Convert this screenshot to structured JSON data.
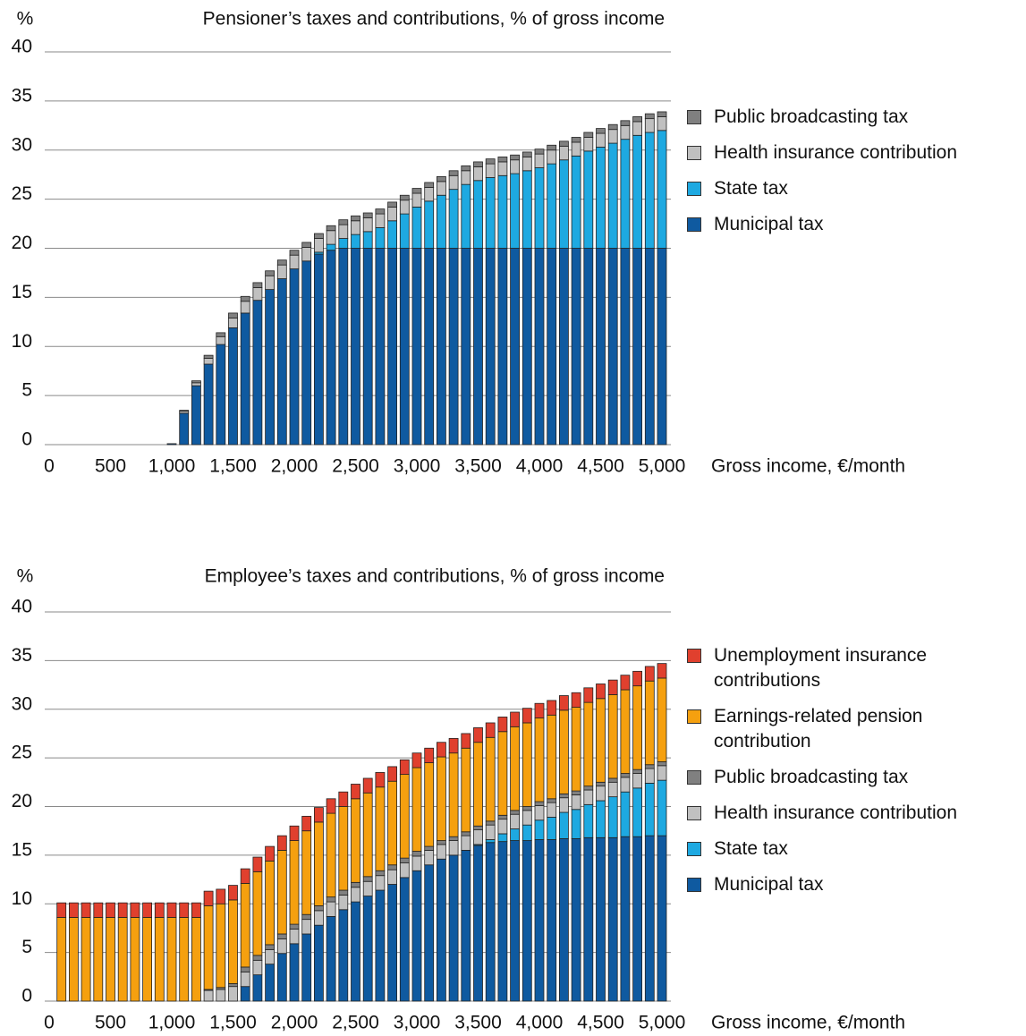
{
  "chart_data": [
    {
      "type": "bar",
      "stacked": true,
      "title": "Pensioner’s taxes and contributions, % of gross income",
      "y_label": "%",
      "x_label": "Gross income, €/month",
      "x": [
        100,
        200,
        300,
        400,
        500,
        600,
        700,
        800,
        900,
        1000,
        1100,
        1200,
        1300,
        1400,
        1500,
        1600,
        1700,
        1800,
        1900,
        2000,
        2100,
        2200,
        2300,
        2400,
        2500,
        2600,
        2700,
        2800,
        2900,
        3000,
        3100,
        3200,
        3300,
        3400,
        3500,
        3600,
        3700,
        3800,
        3900,
        4000,
        4100,
        4200,
        4300,
        4400,
        4500,
        4600,
        4700,
        4800,
        4900,
        5000
      ],
      "xlim": [
        0,
        5000
      ],
      "xticks": [
        0,
        500,
        {
          "value": 1000,
          "label": "1,000"
        },
        {
          "value": 1500,
          "label": "1,500"
        },
        {
          "value": 2000,
          "label": "2,000"
        },
        {
          "value": 2500,
          "label": "2,500"
        },
        {
          "value": 3000,
          "label": "3,000"
        },
        {
          "value": 3500,
          "label": "3,500"
        },
        {
          "value": 4000,
          "label": "4,000"
        },
        {
          "value": 4500,
          "label": "4,500"
        },
        {
          "value": 5000,
          "label": "5,000"
        }
      ],
      "ylim": [
        0,
        40
      ],
      "yticks": [
        0,
        5,
        10,
        15,
        20,
        25,
        30,
        35,
        40
      ],
      "grid": true,
      "series": [
        {
          "name": "Municipal tax",
          "color": "#0f5aa0",
          "values": [
            0,
            0,
            0,
            0,
            0,
            0,
            0,
            0,
            0,
            0.1,
            3.2,
            6.0,
            8.2,
            10.2,
            11.9,
            13.4,
            14.7,
            15.8,
            16.9,
            17.9,
            18.7,
            19.4,
            19.8,
            20,
            20,
            20,
            20,
            20,
            20,
            20,
            20,
            20,
            20,
            20,
            20,
            20,
            20,
            20,
            20,
            20,
            20,
            20,
            20,
            20,
            20,
            20,
            20,
            20,
            20,
            20
          ]
        },
        {
          "name": "State tax",
          "color": "#1ea9e1",
          "values": [
            0,
            0,
            0,
            0,
            0,
            0,
            0,
            0,
            0,
            0,
            0,
            0,
            0,
            0,
            0,
            0,
            0,
            0,
            0,
            0,
            0,
            0.2,
            0.6,
            1.0,
            1.4,
            1.7,
            2.1,
            2.8,
            3.5,
            4.2,
            4.8,
            5.4,
            6.0,
            6.5,
            6.9,
            7.2,
            7.4,
            7.6,
            7.9,
            8.2,
            8.6,
            9.0,
            9.4,
            9.9,
            10.3,
            10.7,
            11.1,
            11.5,
            11.8,
            12.0
          ]
        },
        {
          "name": "Health insurance contribution",
          "color": "#c0c0c0",
          "values": [
            0,
            0,
            0,
            0,
            0,
            0,
            0,
            0,
            0,
            0,
            0.2,
            0.3,
            0.6,
            0.8,
            1.0,
            1.2,
            1.3,
            1.4,
            1.4,
            1.4,
            1.4,
            1.4,
            1.4,
            1.4,
            1.4,
            1.4,
            1.4,
            1.4,
            1.4,
            1.4,
            1.4,
            1.4,
            1.4,
            1.4,
            1.4,
            1.4,
            1.4,
            1.4,
            1.4,
            1.4,
            1.4,
            1.4,
            1.4,
            1.4,
            1.4,
            1.4,
            1.4,
            1.4,
            1.4,
            1.4
          ]
        },
        {
          "name": "Public broadcasting tax",
          "color": "#808080",
          "values": [
            0,
            0,
            0,
            0,
            0,
            0,
            0,
            0,
            0,
            0,
            0.1,
            0.2,
            0.3,
            0.4,
            0.5,
            0.5,
            0.5,
            0.5,
            0.5,
            0.5,
            0.5,
            0.5,
            0.5,
            0.5,
            0.5,
            0.5,
            0.5,
            0.5,
            0.5,
            0.5,
            0.5,
            0.5,
            0.5,
            0.5,
            0.5,
            0.5,
            0.5,
            0.5,
            0.5,
            0.5,
            0.5,
            0.5,
            0.5,
            0.5,
            0.5,
            0.5,
            0.5,
            0.5,
            0.5,
            0.5
          ]
        }
      ]
    },
    {
      "type": "bar",
      "stacked": true,
      "title": "Employee’s taxes and contributions, % of gross income",
      "y_label": "%",
      "x_label": "Gross income, €/month",
      "x": [
        100,
        200,
        300,
        400,
        500,
        600,
        700,
        800,
        900,
        1000,
        1100,
        1200,
        1300,
        1400,
        1500,
        1600,
        1700,
        1800,
        1900,
        2000,
        2100,
        2200,
        2300,
        2400,
        2500,
        2600,
        2700,
        2800,
        2900,
        3000,
        3100,
        3200,
        3300,
        3400,
        3500,
        3600,
        3700,
        3800,
        3900,
        4000,
        4100,
        4200,
        4300,
        4400,
        4500,
        4600,
        4700,
        4800,
        4900,
        5000
      ],
      "xlim": [
        0,
        5000
      ],
      "xticks": [
        0,
        500,
        {
          "value": 1000,
          "label": "1,000"
        },
        {
          "value": 1500,
          "label": "1,500"
        },
        {
          "value": 2000,
          "label": "2,000"
        },
        {
          "value": 2500,
          "label": "2,500"
        },
        {
          "value": 3000,
          "label": "3,000"
        },
        {
          "value": 3500,
          "label": "3,500"
        },
        {
          "value": 4000,
          "label": "4,000"
        },
        {
          "value": 4500,
          "label": "4,500"
        },
        {
          "value": 5000,
          "label": "5,000"
        }
      ],
      "ylim": [
        0,
        40
      ],
      "yticks": [
        0,
        5,
        10,
        15,
        20,
        25,
        30,
        35,
        40
      ],
      "grid": true,
      "series": [
        {
          "name": "Municipal tax",
          "color": "#0f5aa0",
          "values": [
            0,
            0,
            0,
            0,
            0,
            0,
            0,
            0,
            0,
            0,
            0,
            0,
            0,
            0,
            0,
            1.5,
            2.7,
            3.8,
            4.9,
            5.9,
            6.9,
            7.8,
            8.7,
            9.4,
            10.2,
            10.8,
            11.4,
            12.0,
            12.7,
            13.4,
            14.0,
            14.6,
            15.0,
            15.5,
            16.0,
            16.3,
            16.4,
            16.5,
            16.5,
            16.6,
            16.6,
            16.7,
            16.7,
            16.8,
            16.8,
            16.8,
            16.9,
            16.9,
            17.0,
            17.0
          ]
        },
        {
          "name": "State tax",
          "color": "#1ea9e1",
          "values": [
            0,
            0,
            0,
            0,
            0,
            0,
            0,
            0,
            0,
            0,
            0,
            0,
            0,
            0,
            0,
            0,
            0,
            0,
            0,
            0,
            0,
            0,
            0,
            0,
            0,
            0,
            0,
            0,
            0,
            0,
            0,
            0,
            0,
            0,
            0.1,
            0.3,
            0.8,
            1.2,
            1.6,
            2.0,
            2.3,
            2.7,
            3.0,
            3.4,
            3.8,
            4.2,
            4.6,
            5.0,
            5.4,
            5.7
          ]
        },
        {
          "name": "Health insurance contribution",
          "color": "#c0c0c0",
          "values": [
            0,
            0,
            0,
            0,
            0,
            0,
            0,
            0,
            0,
            0,
            0,
            0,
            1.1,
            1.2,
            1.5,
            1.5,
            1.5,
            1.5,
            1.5,
            1.5,
            1.5,
            1.5,
            1.5,
            1.5,
            1.5,
            1.5,
            1.5,
            1.5,
            1.5,
            1.5,
            1.5,
            1.5,
            1.5,
            1.5,
            1.5,
            1.5,
            1.5,
            1.5,
            1.5,
            1.5,
            1.5,
            1.5,
            1.5,
            1.5,
            1.5,
            1.5,
            1.5,
            1.5,
            1.5,
            1.5
          ]
        },
        {
          "name": "Public broadcasting tax",
          "color": "#808080",
          "values": [
            0,
            0,
            0,
            0,
            0,
            0,
            0,
            0,
            0,
            0,
            0,
            0,
            0.1,
            0.2,
            0.3,
            0.5,
            0.5,
            0.5,
            0.5,
            0.5,
            0.5,
            0.5,
            0.5,
            0.5,
            0.5,
            0.5,
            0.5,
            0.5,
            0.5,
            0.5,
            0.4,
            0.4,
            0.4,
            0.4,
            0.4,
            0.4,
            0.4,
            0.4,
            0.4,
            0.4,
            0.4,
            0.4,
            0.4,
            0.4,
            0.4,
            0.4,
            0.4,
            0.4,
            0.4,
            0.4
          ]
        },
        {
          "name": "Earnings-related pension contribution",
          "color": "#f5a00f",
          "values": [
            8.6,
            8.6,
            8.6,
            8.6,
            8.6,
            8.6,
            8.6,
            8.6,
            8.6,
            8.6,
            8.6,
            8.6,
            8.6,
            8.6,
            8.6,
            8.6,
            8.6,
            8.6,
            8.6,
            8.6,
            8.6,
            8.6,
            8.6,
            8.6,
            8.6,
            8.6,
            8.6,
            8.6,
            8.6,
            8.6,
            8.6,
            8.6,
            8.6,
            8.6,
            8.6,
            8.6,
            8.6,
            8.6,
            8.6,
            8.6,
            8.6,
            8.6,
            8.6,
            8.6,
            8.6,
            8.6,
            8.6,
            8.6,
            8.6,
            8.6
          ]
        },
        {
          "name": "Unemployment insurance contributions",
          "color": "#e0402e",
          "values": [
            1.5,
            1.5,
            1.5,
            1.5,
            1.5,
            1.5,
            1.5,
            1.5,
            1.5,
            1.5,
            1.5,
            1.5,
            1.5,
            1.5,
            1.5,
            1.5,
            1.5,
            1.5,
            1.5,
            1.5,
            1.5,
            1.5,
            1.5,
            1.5,
            1.5,
            1.5,
            1.5,
            1.5,
            1.5,
            1.5,
            1.5,
            1.5,
            1.5,
            1.5,
            1.5,
            1.5,
            1.5,
            1.5,
            1.5,
            1.5,
            1.5,
            1.5,
            1.5,
            1.5,
            1.5,
            1.5,
            1.5,
            1.5,
            1.5,
            1.5
          ]
        }
      ]
    }
  ]
}
